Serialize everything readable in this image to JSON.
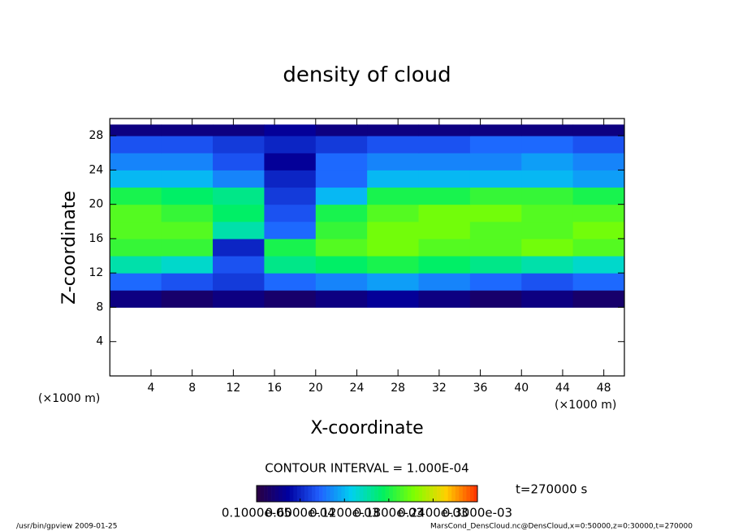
{
  "chart_data": {
    "type": "heatmap",
    "title": "density of cloud",
    "x_label": "X-coordinate",
    "y_label": "Z-coordinate",
    "x_unit": "(×1000 m)",
    "y_unit": "(×1000 m)",
    "xlim": [
      0,
      50
    ],
    "ylim": [
      0,
      30
    ],
    "xticks": [
      4,
      8,
      12,
      16,
      20,
      24,
      28,
      32,
      36,
      40,
      44,
      48
    ],
    "yticks": [
      4,
      8,
      12,
      16,
      20,
      24,
      28
    ],
    "x": [
      0,
      5,
      10,
      15,
      20,
      25,
      30,
      35,
      40,
      45,
      50
    ],
    "z": [
      8,
      10,
      12,
      14,
      16,
      18,
      20,
      22,
      24,
      26,
      28,
      29.3
    ],
    "values": [
      [
        3e-05,
        2e-05,
        3e-05,
        2e-05,
        3e-05,
        4e-05,
        3e-05,
        2e-05,
        3e-05,
        2e-05
      ],
      [
        9e-05,
        8e-05,
        7e-05,
        9e-05,
        0.0001,
        0.00011,
        0.0001,
        9e-05,
        8e-05,
        9e-05
      ],
      [
        0.00015,
        0.00014,
        8e-05,
        0.00016,
        0.00017,
        0.00018,
        0.00017,
        0.00016,
        0.00015,
        0.00014
      ],
      [
        0.00019,
        0.00019,
        6e-05,
        0.00018,
        0.0002,
        0.00021,
        0.0002,
        0.0002,
        0.00021,
        0.0002
      ],
      [
        0.0002,
        0.0002,
        0.00015,
        9e-05,
        0.00019,
        0.00021,
        0.00021,
        0.0002,
        0.0002,
        0.00021
      ],
      [
        0.0002,
        0.00019,
        0.00017,
        8e-05,
        0.00018,
        0.0002,
        0.00021,
        0.00021,
        0.0002,
        0.0002
      ],
      [
        0.00018,
        0.00017,
        0.00016,
        7e-05,
        0.00012,
        0.00018,
        0.00018,
        0.00019,
        0.00019,
        0.00018
      ],
      [
        0.00012,
        0.00012,
        0.0001,
        6e-05,
        9e-05,
        0.00012,
        0.00012,
        0.00012,
        0.00012,
        0.00011
      ],
      [
        0.0001,
        0.0001,
        8e-05,
        4e-05,
        9e-05,
        0.0001,
        0.0001,
        0.0001,
        0.00011,
        0.0001
      ],
      [
        8e-05,
        8e-05,
        7e-05,
        6e-05,
        7e-05,
        8e-05,
        8e-05,
        9e-05,
        9e-05,
        8e-05
      ],
      [
        3e-05,
        3e-05,
        3e-05,
        4e-05,
        3e-05,
        3e-05,
        3e-05,
        3e-05,
        3e-05,
        3e-05
      ]
    ],
    "colormap": [
      "#2a0040",
      "#0000a0",
      "#2060ff",
      "#00d0f0",
      "#00f060",
      "#80ff00",
      "#ffd000",
      "#ff3000"
    ],
    "colorbar_ticks": [
      {
        "value": 1e-06,
        "label": "0.1000e-05"
      },
      {
        "value": 6e-05,
        "label": "0.6000e-04"
      },
      {
        "value": 0.00012,
        "label": "0.1200e-03"
      },
      {
        "value": 0.00018,
        "label": "0.1800e-03"
      },
      {
        "value": 0.00024,
        "label": "0.2400e-03"
      },
      {
        "value": 0.0003,
        "label": "0.3000e-03"
      }
    ],
    "contour_interval": "CONTOUR INTERVAL = 1.000E-04",
    "time_label": "t=270000 s",
    "footer_left": "/usr/bin/gpview  2009-01-25",
    "footer_right": "MarsCond_DensCloud.nc@DensCloud,x=0:50000,z=0:30000,t=270000"
  }
}
